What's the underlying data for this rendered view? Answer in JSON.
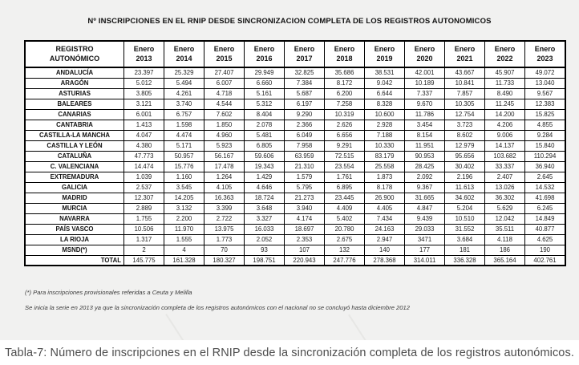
{
  "title": "Nº INSCRIPCIONES EN EL RNIP DESDE SINCRONIZACION COMPLETA DE LOS REGISTROS AUTONOMICOS",
  "table": {
    "corner_header": {
      "line1": "REGISTRO",
      "line2": "AUTONÓMICO"
    },
    "year_headers": [
      {
        "line1": "Enero",
        "line2": "2013"
      },
      {
        "line1": "Enero",
        "line2": "2014"
      },
      {
        "line1": "Enero",
        "line2": "2015"
      },
      {
        "line1": "Enero",
        "line2": "2016"
      },
      {
        "line1": "Enero",
        "line2": "2017"
      },
      {
        "line1": "Enero",
        "line2": "2018"
      },
      {
        "line1": "Enero",
        "line2": "2019"
      },
      {
        "line1": "Enero",
        "line2": "2020"
      },
      {
        "line1": "Enero",
        "line2": "2021"
      },
      {
        "line1": "Enero",
        "line2": "2022"
      },
      {
        "line1": "Enero",
        "line2": "2023"
      }
    ],
    "rows": [
      {
        "name": "ANDALUCÍA",
        "values": [
          "23.397",
          "25.329",
          "27.407",
          "29.949",
          "32.825",
          "35.686",
          "38.531",
          "42.001",
          "43.667",
          "45.907",
          "49.072"
        ]
      },
      {
        "name": "ARAGÓN",
        "values": [
          "5.012",
          "5.494",
          "6.007",
          "6.660",
          "7.384",
          "8.172",
          "9.042",
          "10.189",
          "10.841",
          "11.733",
          "13.040"
        ]
      },
      {
        "name": "ASTURIAS",
        "values": [
          "3.805",
          "4.261",
          "4.718",
          "5.161",
          "5.687",
          "6.200",
          "6.644",
          "7.337",
          "7.857",
          "8.490",
          "9.567"
        ]
      },
      {
        "name": "BALEARES",
        "values": [
          "3.121",
          "3.740",
          "4.544",
          "5.312",
          "6.197",
          "7.258",
          "8.328",
          "9.670",
          "10.305",
          "11.245",
          "12.383"
        ]
      },
      {
        "name": "CANARIAS",
        "values": [
          "6.001",
          "6.757",
          "7.602",
          "8.404",
          "9.290",
          "10.319",
          "10.600",
          "11.786",
          "12.754",
          "14.200",
          "15.825"
        ]
      },
      {
        "name": "CANTABRIA",
        "values": [
          "1.413",
          "1.598",
          "1.850",
          "2.078",
          "2.366",
          "2.626",
          "2.928",
          "3.454",
          "3.723",
          "4.206",
          "4.855"
        ]
      },
      {
        "name": "CASTILLA-LA MANCHA",
        "values": [
          "4.047",
          "4.474",
          "4.960",
          "5.481",
          "6.049",
          "6.656",
          "7.188",
          "8.154",
          "8.602",
          "9.006",
          "9.284"
        ]
      },
      {
        "name": "CASTILLA Y LEÓN",
        "values": [
          "4.380",
          "5.171",
          "5.923",
          "6.805",
          "7.958",
          "9.291",
          "10.330",
          "11.951",
          "12.979",
          "14.137",
          "15.840"
        ]
      },
      {
        "name": "CATALUÑA",
        "values": [
          "47.773",
          "50.957",
          "56.167",
          "59.606",
          "63.959",
          "72.515",
          "83.179",
          "90.953",
          "95.656",
          "103.682",
          "110.294"
        ]
      },
      {
        "name": "C. VALENCIANA",
        "values": [
          "14.474",
          "15.776",
          "17.478",
          "19.343",
          "21.310",
          "23.554",
          "25.558",
          "28.425",
          "30.402",
          "33.337",
          "36.940"
        ]
      },
      {
        "name": "EXTREMADURA",
        "values": [
          "1.039",
          "1.160",
          "1.264",
          "1.429",
          "1.579",
          "1.761",
          "1.873",
          "2.092",
          "2.196",
          "2.407",
          "2.645"
        ]
      },
      {
        "name": "GALICIA",
        "values": [
          "2.537",
          "3.545",
          "4.105",
          "4.646",
          "5.795",
          "6.895",
          "8.178",
          "9.367",
          "11.613",
          "13.026",
          "14.532"
        ]
      },
      {
        "name": "MADRID",
        "values": [
          "12.307",
          "14.205",
          "16.363",
          "18.724",
          "21.273",
          "23.445",
          "26.900",
          "31.665",
          "34.602",
          "36.302",
          "41.698"
        ]
      },
      {
        "name": "MURCIA",
        "values": [
          "2.889",
          "3.132",
          "3.399",
          "3.648",
          "3.940",
          "4.409",
          "4.405",
          "4.847",
          "5.204",
          "5.629",
          "6.245"
        ]
      },
      {
        "name": "NAVARRA",
        "values": [
          "1.755",
          "2.200",
          "2.722",
          "3.327",
          "4.174",
          "5.402",
          "7.434",
          "9.439",
          "10.510",
          "12.042",
          "14.849"
        ]
      },
      {
        "name": "PAÍS VASCO",
        "values": [
          "10.506",
          "11.970",
          "13.975",
          "16.033",
          "18.697",
          "20.780",
          "24.163",
          "29.033",
          "31.552",
          "35.511",
          "40.877"
        ]
      },
      {
        "name": "LA RIOJA",
        "values": [
          "1.317",
          "1.555",
          "1.773",
          "2.052",
          "2.353",
          "2.675",
          "2.947",
          "3471",
          "3.684",
          "4.118",
          "4.625"
        ]
      },
      {
        "name": "MSND(*)",
        "values": [
          "2",
          "4",
          "70",
          "93",
          "107",
          "132",
          "140",
          "177",
          "181",
          "186",
          "190"
        ]
      }
    ],
    "total_row": {
      "name": "TOTAL",
      "values": [
        "145.775",
        "161.328",
        "180.327",
        "198.751",
        "220.943",
        "247.776",
        "278.368",
        "314.011",
        "336.328",
        "365.164",
        "402.761"
      ]
    }
  },
  "footnotes": [
    "(*) Para inscripciones provisionales referidas a Ceuta y Melilla",
    "Se inicia la serie en 2013 ya que la sincronización completa de los registros autonómicos con el nacional no se concluyó hasta diciembre 2012"
  ],
  "caption": "Tabla-7: Número de inscripciones en el RNIP desde la sincronización completa de los registros autonómicos."
}
